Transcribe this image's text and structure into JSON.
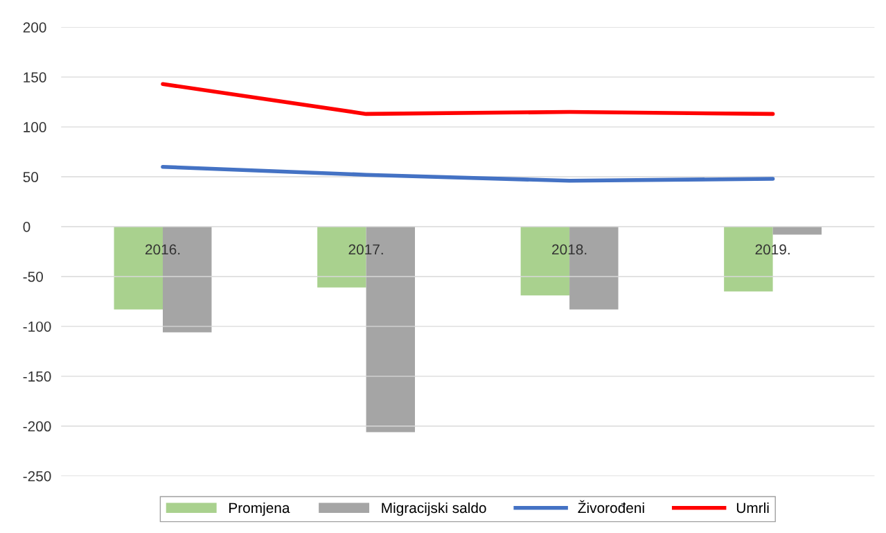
{
  "chart_data": {
    "type": "bar",
    "categories": [
      "2016.",
      "2017.",
      "2018.",
      "2019."
    ],
    "series": [
      {
        "name": "Promjena",
        "color": "#a9d18e",
        "values": [
          -83,
          -61,
          -69,
          -65
        ]
      },
      {
        "name": "Migracijski saldo",
        "color": "#a5a5a5",
        "values": [
          -106,
          -206,
          -83,
          -8
        ]
      },
      {
        "name": "Živorođeni",
        "type": "line",
        "color": "#4472c4",
        "values": [
          60,
          52,
          46,
          48
        ]
      },
      {
        "name": "Umrli",
        "type": "line",
        "color": "#ff0000",
        "values": [
          143,
          113,
          115,
          113
        ]
      }
    ],
    "ylim": [
      -250,
      200
    ],
    "yticks": [
      -250,
      -200,
      -150,
      -100,
      -50,
      0,
      50,
      100,
      150,
      200
    ],
    "grid": "y",
    "legend": "bottom",
    "marker": "none",
    "line_style": "solid"
  }
}
